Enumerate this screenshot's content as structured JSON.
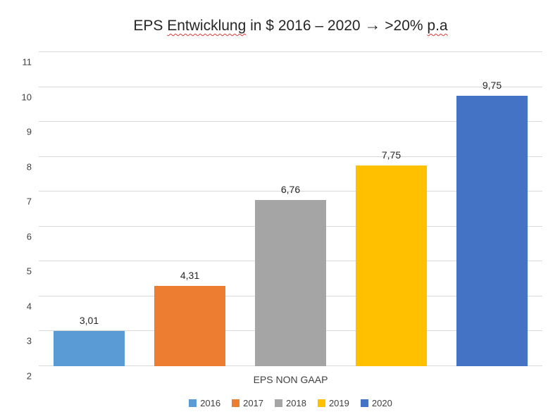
{
  "chart_data": {
    "type": "bar",
    "title_parts": [
      {
        "text": "EPS ",
        "misspelled": false
      },
      {
        "text": "Entwicklung",
        "misspelled": true
      },
      {
        "text": " in $ 2016 – 2020 ",
        "misspelled": false
      },
      {
        "text": "→",
        "misspelled": false,
        "arrow": true
      },
      {
        "text": " >20% ",
        "misspelled": false
      },
      {
        "text": "p.a",
        "misspelled": true
      }
    ],
    "title_plain": "EPS Entwicklung in $ 2016 – 2020 → >20% p.a",
    "categories": [
      "2016",
      "2017",
      "2018",
      "2019",
      "2020"
    ],
    "values": [
      3.01,
      4.31,
      6.76,
      7.75,
      9.75
    ],
    "value_labels": [
      "3,01",
      "4,31",
      "6,76",
      "7,75",
      "9,75"
    ],
    "colors": [
      "#5B9BD5",
      "#ED7D31",
      "#A5A5A5",
      "#FFC000",
      "#4472C4"
    ],
    "xlabel": "EPS NON GAAP",
    "ylabel": "",
    "ylim": [
      2,
      11
    ],
    "ytick_step": 1,
    "ytick_labels": [
      "2",
      "3",
      "4",
      "5",
      "6",
      "7",
      "8",
      "9",
      "10",
      "11"
    ],
    "grid": true,
    "gridline_color": "#d9d9d9",
    "legend_position": "bottom"
  }
}
